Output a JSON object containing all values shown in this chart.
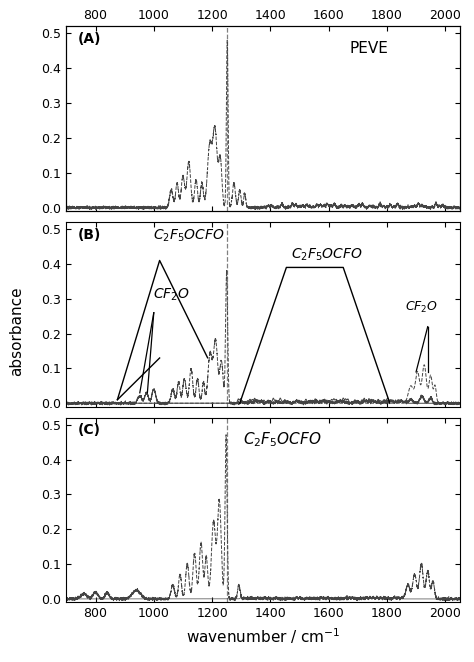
{
  "xlim": [
    700,
    2050
  ],
  "ylim": [
    -0.01,
    0.52
  ],
  "yticks": [
    0.0,
    0.1,
    0.2,
    0.3,
    0.4,
    0.5
  ],
  "xticks": [
    800,
    1000,
    1200,
    1400,
    1600,
    1800,
    2000
  ],
  "xlabel": "wavenumber / cm$^{-1}$",
  "ylabel": "absorbance",
  "panel_labels": [
    "(A)",
    "(B)",
    "(C)"
  ],
  "background_color": "#ffffff",
  "line_color": "#444444",
  "vline_x": 1252
}
